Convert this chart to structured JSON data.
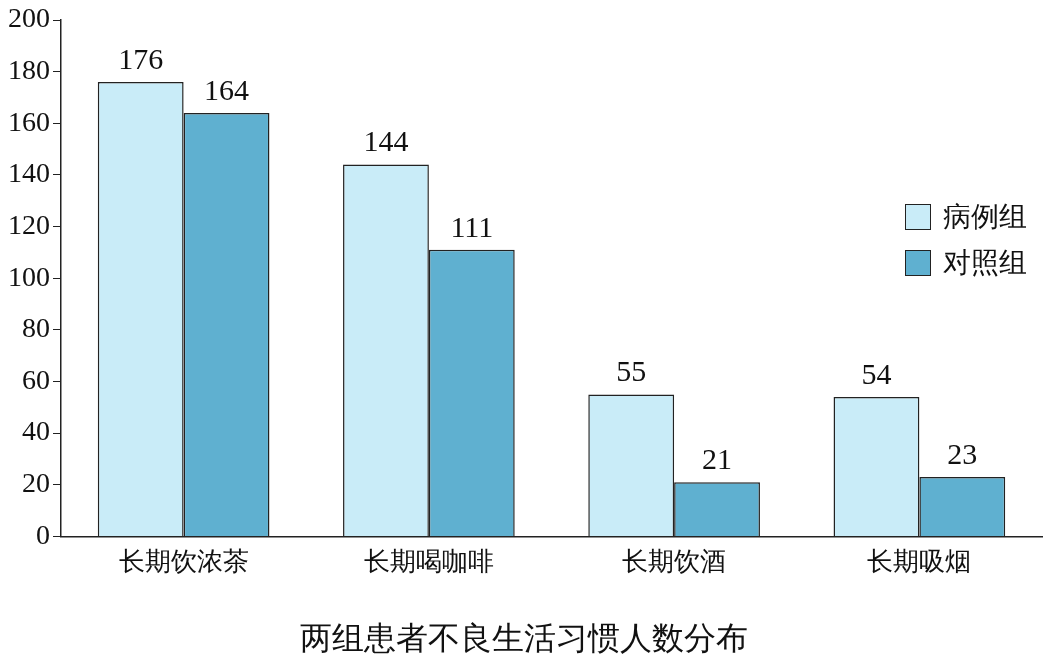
{
  "chart_data": {
    "type": "bar",
    "title": "两组患者不良生活习惯人数分布",
    "categories": [
      "长期饮浓茶",
      "长期喝咖啡",
      "长期饮酒",
      "长期吸烟"
    ],
    "series": [
      {
        "name": "病例组",
        "color": "#c9ecf8",
        "values": [
          176,
          144,
          55,
          54
        ]
      },
      {
        "name": "对照组",
        "color": "#5fb0d0",
        "values": [
          164,
          111,
          21,
          23
        ]
      }
    ],
    "ylim": [
      0,
      200
    ],
    "yticks": [
      0,
      20,
      40,
      60,
      80,
      100,
      120,
      140,
      160,
      180,
      200
    ],
    "grid": false,
    "legend": "right",
    "data_labels": true
  }
}
